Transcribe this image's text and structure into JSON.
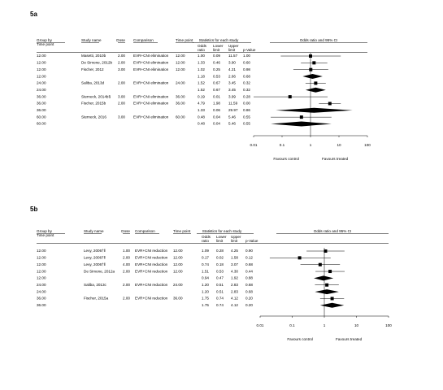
{
  "chart_data": [
    {
      "type": "forest",
      "title": "5a",
      "headers": {
        "group": [
          "Group by",
          "Time point"
        ],
        "study": "Study name",
        "dose": "Dose",
        "comparison": "Comparison",
        "timepoint": "Time point",
        "stats": "Statistics for each study",
        "or": [
          "Odds",
          "ratio"
        ],
        "lower": [
          "Lower",
          "limit"
        ],
        "upper": [
          "Upper",
          "limit"
        ],
        "p": "p-Value",
        "plot": "Odds ratio and 95% CI"
      },
      "rows": [
        {
          "group": "12.00",
          "study": "Masetti, 2010b",
          "dose": "2.00",
          "comparison": "EVR+CNI elimination",
          "timepoint": "12.00",
          "p": "1.00"
        },
        {
          "group": "12.00",
          "study": "De Simone, 2012b",
          "dose": "2.00",
          "comparison": "EVR+CNI elimination",
          "timepoint": "12.00",
          "p": "0.60"
        },
        {
          "group": "12.00",
          "study": "Fischer, 2012",
          "dose": "3.00",
          "comparison": "EVR+CNI elimination",
          "timepoint": "12.00",
          "p": "0.98"
        },
        {
          "group": "12.00",
          "p": "0.68"
        },
        {
          "group": "24.00",
          "study": "Saliba, 2013d",
          "dose": "2.00",
          "comparison": "EVR+CNI elimination",
          "timepoint": "24.00",
          "p": "0.32"
        },
        {
          "group": "24.00",
          "p": "0.32"
        },
        {
          "group": "36.00",
          "study": "Sterneck, 2014b§",
          "dose": "3.00",
          "comparison": "EVR+CNI elimination",
          "timepoint": "36.00",
          "p": "0.28"
        },
        {
          "group": "36.00",
          "study": "Fischer, 2015b",
          "dose": "2.00",
          "comparison": "EVR+CNI elimination",
          "timepoint": "36.00",
          "p": "0.00"
        },
        {
          "group": "36.00",
          "p": "0.86"
        },
        {
          "group": "60.00",
          "study": "Sterneck, 2016",
          "dose": "3.00",
          "comparison": "EVR+CNI elimination",
          "timepoint": "60.00",
          "p": "0.55"
        },
        {
          "group": "60.00",
          "p": "0.55"
        }
      ],
      "values": [
        1.0,
        1.33,
        1.02,
        1.18,
        1.52,
        1.52,
        0.19,
        4.79,
        1.33,
        0.48,
        0.48
      ],
      "value_labels": [
        "1.00",
        "1.33",
        "1.02",
        "1.18",
        "1.52",
        "1.52",
        "0.19",
        "4.79",
        "1.33",
        "0.48",
        "0.48"
      ],
      "lower": [
        0.09,
        0.46,
        0.25,
        0.53,
        0.67,
        0.67,
        0.01,
        1.98,
        0.06,
        0.04,
        0.04
      ],
      "lower_labels": [
        "0.09",
        "0.46",
        "0.25",
        "0.53",
        "0.67",
        "0.67",
        "0.01",
        "1.98",
        "0.06",
        "0.04",
        "0.04"
      ],
      "upper": [
        11.57,
        3.9,
        4.21,
        2.66,
        3.45,
        3.45,
        3.99,
        11.59,
        29.97,
        5.46,
        5.46
      ],
      "upper_labels": [
        "11.57",
        "3.90",
        "4.21",
        "2.66",
        "3.45",
        "3.45",
        "3.99",
        "11.59",
        "29.97",
        "5.46",
        "5.46"
      ],
      "xlim": [
        0.01,
        100
      ],
      "xticks": [
        0.01,
        0.1,
        1,
        10,
        100
      ],
      "log_x": true,
      "reference": 1,
      "left_label": "Favours control",
      "right_label": "Favours treated",
      "color": "#000000"
    },
    {
      "type": "forest",
      "title": "5b",
      "headers": {
        "group": [
          "Group by",
          "Time point"
        ],
        "study": "Study name",
        "dose": "Dose",
        "comparison": "Comparison",
        "timepoint": "Time point",
        "stats": "Statistics for each study",
        "or": [
          "Odds",
          "ratio"
        ],
        "lower": [
          "Lower",
          "limit"
        ],
        "upper": [
          "Upper",
          "limit"
        ],
        "p": "p-Value",
        "plot": "Odds ratio and 95% CI"
      },
      "rows": [
        {
          "group": "12.00",
          "study": "Levy, 2006†‖",
          "dose": "1.00",
          "comparison": "EVR+CNI reduction",
          "timepoint": "12.00",
          "p": "0.90"
        },
        {
          "group": "12.00",
          "study": "Levy, 2006†‖",
          "dose": "2.00",
          "comparison": "EVR+CNI reduction",
          "timepoint": "12.00",
          "p": "0.12"
        },
        {
          "group": "12.00",
          "study": "Levy, 2006†‖",
          "dose": "4.00",
          "comparison": "EVR+CNI reduction",
          "timepoint": "12.00",
          "p": "0.68"
        },
        {
          "group": "12.00",
          "study": "De Simone, 2012a",
          "dose": "2.00",
          "comparison": "EVR+CNI reduction",
          "timepoint": "12.00",
          "p": "0.44"
        },
        {
          "group": "12.00",
          "p": "0.88"
        },
        {
          "group": "24.00",
          "study": "Saliba, 2013c",
          "dose": "2.00",
          "comparison": "EVR+CNI reduction",
          "timepoint": "24.00",
          "p": "0.68"
        },
        {
          "group": "24.00",
          "p": "0.68"
        },
        {
          "group": "36.00",
          "study": "Fischer, 2015a",
          "dose": "2.00",
          "comparison": "EVR+CNI reduction",
          "timepoint": "36.00",
          "p": "0.20"
        },
        {
          "group": "36.00",
          "p": "0.20"
        }
      ],
      "values": [
        1.09,
        0.17,
        0.74,
        1.51,
        0.94,
        1.2,
        1.2,
        1.75,
        1.75
      ],
      "value_labels": [
        "1.09",
        "0.17",
        "0.74",
        "1.51",
        "0.94",
        "1.20",
        "1.20",
        "1.75",
        "1.75"
      ],
      "lower": [
        0.28,
        0.02,
        0.18,
        0.53,
        0.47,
        0.51,
        0.51,
        0.74,
        0.74
      ],
      "lower_labels": [
        "0.28",
        "0.02",
        "0.18",
        "0.53",
        "0.47",
        "0.51",
        "0.51",
        "0.74",
        "0.74"
      ],
      "upper": [
        4.25,
        1.58,
        3.07,
        4.3,
        1.92,
        2.83,
        2.83,
        4.12,
        4.12
      ],
      "upper_labels": [
        "4.25",
        "1.58",
        "3.07",
        "4.30",
        "1.92",
        "2.83",
        "2.83",
        "4.12",
        "4.12"
      ],
      "xlim": [
        0.01,
        100
      ],
      "xticks": [
        0.01,
        0.1,
        1,
        10,
        100
      ],
      "log_x": true,
      "reference": 1,
      "left_label": "Favours control",
      "right_label": "Favours treated",
      "color": "#000000"
    }
  ]
}
